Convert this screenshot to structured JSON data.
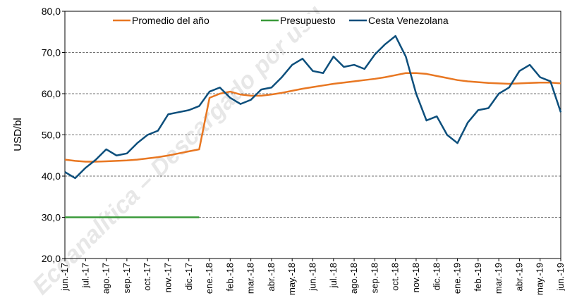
{
  "chart_data": {
    "type": "line",
    "y_label": "USD/bl",
    "watermark": "Ecoanalítica – Descargado por usu",
    "categories": [
      "jun.-17",
      null,
      "jul.-17",
      null,
      "ago.-17",
      null,
      "sep.-17",
      null,
      "oct.-17",
      null,
      "nov.-17",
      null,
      "dic.-17",
      null,
      "ene.-18",
      null,
      "feb.-18",
      null,
      "mar.-18",
      null,
      "abr.-18",
      null,
      "may.-18",
      null,
      "jun.-18",
      null,
      "jul.-18",
      null,
      "ago.-18",
      null,
      "sep.-18",
      null,
      "oct.-18",
      null,
      "nov.-18",
      null,
      "dic.-18",
      null,
      "ene.-19",
      null,
      "feb.-19",
      null,
      "mar.-19",
      null,
      "abr.-19",
      null,
      "may.-19",
      null,
      "jun.-19"
    ],
    "series": [
      {
        "name": "Promedio del año",
        "color": "#e87722",
        "values": [
          44,
          43.7,
          43.5,
          43.5,
          43.6,
          43.7,
          43.8,
          44,
          44.3,
          44.6,
          45,
          45.5,
          46,
          46.5,
          59,
          60,
          60.5,
          59.8,
          59.5,
          59.5,
          59.8,
          60.2,
          60.7,
          61.2,
          61.6,
          62,
          62.4,
          62.7,
          63,
          63.3,
          63.6,
          64,
          64.5,
          65,
          65,
          64.8,
          64.3,
          63.8,
          63.3,
          63,
          62.8,
          62.6,
          62.5,
          62.4,
          62.5,
          62.6,
          62.7,
          62.7,
          62.5
        ]
      },
      {
        "name": "Presupuesto",
        "color": "#3a9a3a",
        "values": [
          30,
          30,
          30,
          30,
          30,
          30,
          30,
          30,
          30,
          30,
          30,
          30,
          30,
          30,
          null,
          null,
          null,
          null,
          null,
          null,
          null,
          null,
          null,
          null,
          null,
          null,
          null,
          null,
          null,
          null,
          null,
          null,
          null,
          null,
          null,
          null,
          null,
          null,
          null,
          null,
          null,
          null,
          null,
          null,
          null,
          null,
          null,
          null,
          null
        ]
      },
      {
        "name": "Cesta Venezolana",
        "color": "#0d4f7c",
        "values": [
          41,
          39.5,
          42,
          44,
          46.5,
          45,
          45.5,
          48,
          50,
          51,
          55,
          55.5,
          56,
          57,
          60.5,
          61.5,
          59,
          57.5,
          58.5,
          61,
          61.5,
          64,
          67,
          68.5,
          65.5,
          65,
          69,
          66.5,
          67,
          66,
          69.5,
          72,
          74,
          69,
          60,
          53.5,
          54.5,
          50,
          48,
          53,
          56,
          56.5,
          60,
          61.5,
          65.5,
          67,
          64,
          63,
          55.5
        ]
      }
    ],
    "ylim": [
      20,
      80
    ],
    "yticks": [
      {
        "value": 20,
        "label": "20,0"
      },
      {
        "value": 30,
        "label": "30,0"
      },
      {
        "value": 40,
        "label": "40,0"
      },
      {
        "value": 50,
        "label": "50,0"
      },
      {
        "value": 60,
        "label": "60,0"
      },
      {
        "value": 70,
        "label": "70,0"
      },
      {
        "value": 80,
        "label": "80,0"
      }
    ],
    "grid": true,
    "legend": "top"
  }
}
